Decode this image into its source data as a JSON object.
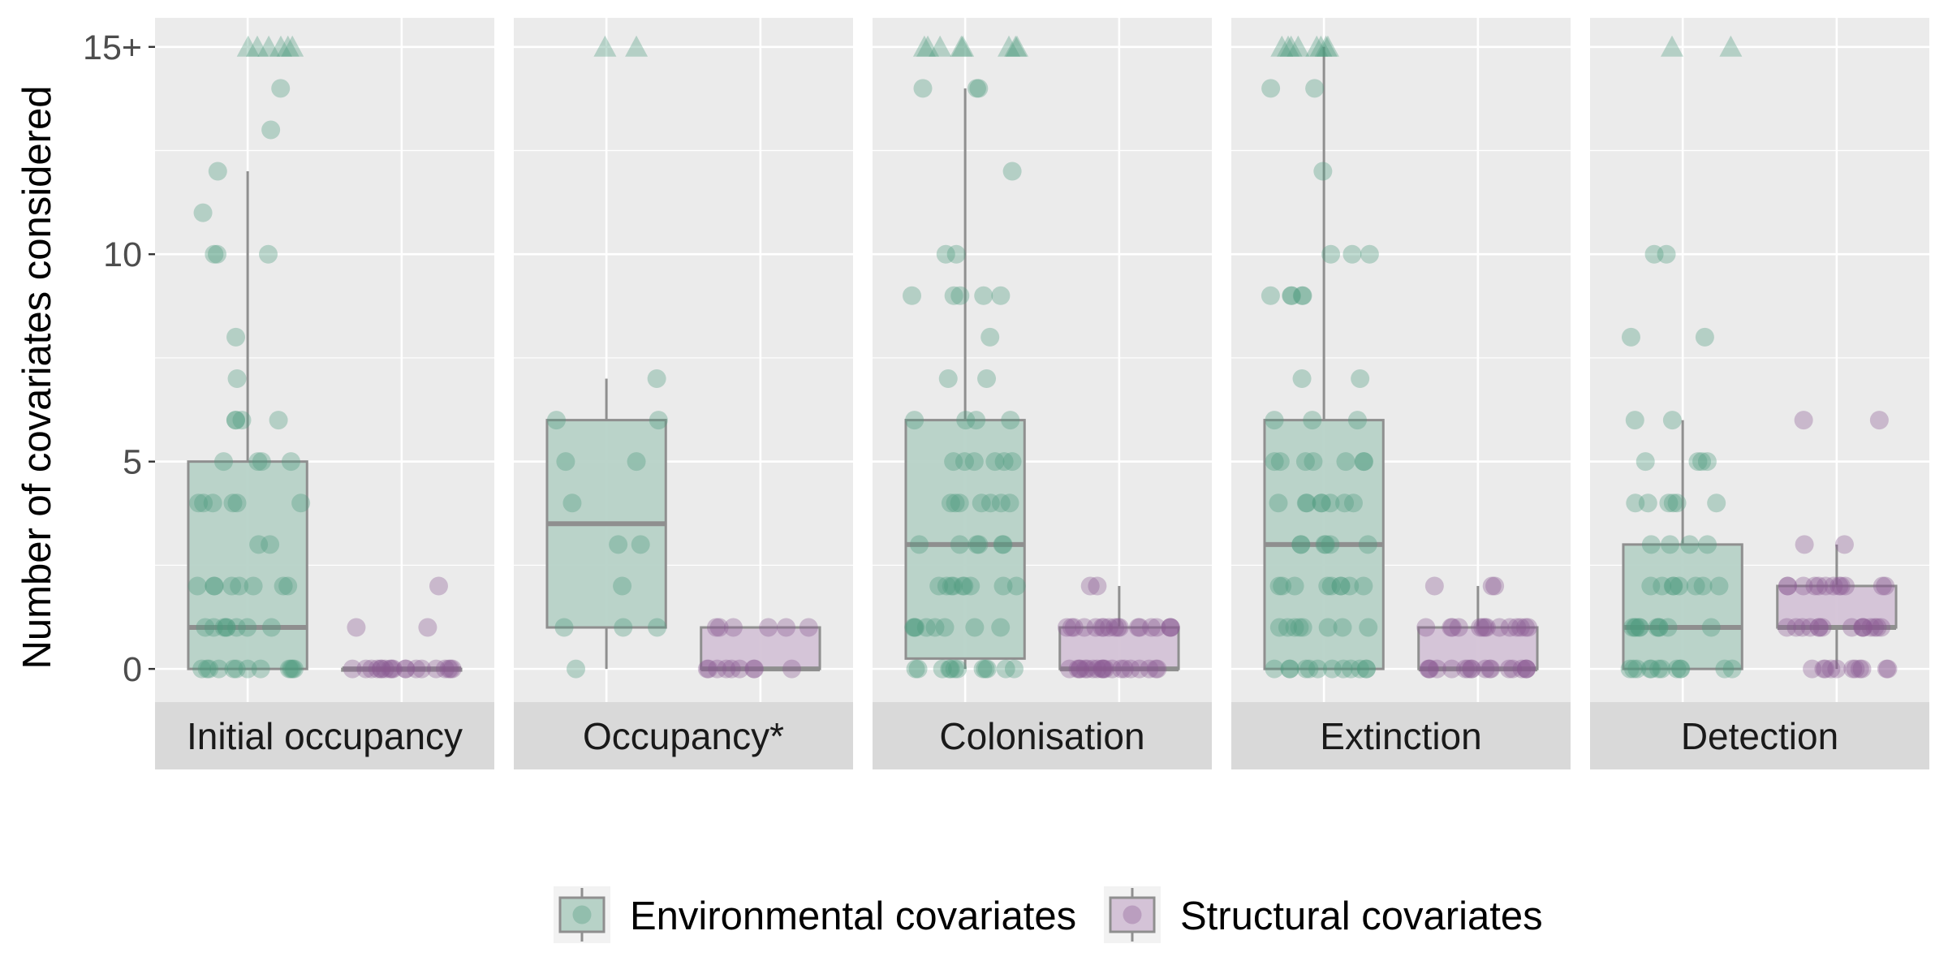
{
  "chart_data": {
    "type": "boxplot",
    "ylabel": "Number of covariates considered",
    "ylim": [
      -0.8,
      15.7
    ],
    "y_ticks": [
      {
        "value": 0,
        "label": "0"
      },
      {
        "value": 5,
        "label": "5"
      },
      {
        "value": 10,
        "label": "10"
      },
      {
        "value": 15,
        "label": "15+"
      }
    ],
    "capped_marker_note": "Triangles at 15+ mark studies with 15 or more covariates",
    "grid": true,
    "legend_position": "bottom",
    "series": [
      {
        "name": "Environmental covariates",
        "color": "#4e9a7f",
        "fill": "#b7d2c7"
      },
      {
        "name": "Structural covariates",
        "color": "#8a5a93",
        "fill": "#d4c3d7"
      }
    ],
    "panels": [
      {
        "label": "Initial occupancy",
        "environmental": {
          "box": {
            "q1": 0,
            "median": 1,
            "q3": 5,
            "whisker_low": 0,
            "whisker_high": 12
          },
          "points": [
            0,
            0,
            0,
            0,
            0,
            0,
            0,
            0,
            0,
            0,
            0,
            0,
            1,
            1,
            1,
            1,
            1,
            1,
            1,
            1,
            2,
            2,
            2,
            2,
            2,
            2,
            2,
            2,
            3,
            3,
            4,
            4,
            4,
            4,
            4,
            4,
            5,
            5,
            5,
            5,
            6,
            6,
            6,
            6,
            7,
            8,
            10,
            10,
            10,
            11,
            12,
            13,
            14
          ],
          "capped": [
            15,
            15,
            15,
            15,
            15,
            15
          ]
        },
        "structural": {
          "box": {
            "q1": 0,
            "median": 0,
            "q3": 0,
            "whisker_low": 0,
            "whisker_high": 0
          },
          "points": [
            0,
            0,
            0,
            0,
            0,
            0,
            0,
            0,
            0,
            0,
            0,
            0,
            0,
            0,
            0,
            0,
            0,
            0,
            0,
            1,
            1,
            2
          ],
          "capped": []
        }
      },
      {
        "label": "Occupancy*",
        "environmental": {
          "box": {
            "q1": 1,
            "median": 3.5,
            "q3": 6,
            "whisker_low": 0,
            "whisker_high": 7
          },
          "points": [
            0,
            1,
            1,
            1,
            2,
            3,
            3,
            4,
            5,
            5,
            6,
            6,
            7
          ],
          "capped": [
            15,
            15
          ]
        },
        "structural": {
          "box": {
            "q1": 0,
            "median": 0,
            "q3": 1,
            "whisker_low": 0,
            "whisker_high": 1
          },
          "points": [
            0,
            0,
            0,
            0,
            0,
            0,
            0,
            0,
            0,
            1,
            1,
            1,
            1,
            1,
            1
          ],
          "capped": []
        }
      },
      {
        "label": "Colonisation",
        "environmental": {
          "box": {
            "q1": 0.25,
            "median": 3,
            "q3": 6,
            "whisker_low": 0,
            "whisker_high": 14
          },
          "points": [
            0,
            0,
            0,
            0,
            0,
            0,
            0,
            0,
            0,
            0,
            0,
            0,
            1,
            1,
            1,
            1,
            1,
            1,
            1,
            1,
            2,
            2,
            2,
            2,
            2,
            2,
            2,
            2,
            2,
            3,
            3,
            3,
            3,
            3,
            3,
            4,
            4,
            4,
            4,
            4,
            4,
            4,
            5,
            5,
            5,
            5,
            5,
            5,
            6,
            6,
            6,
            6,
            7,
            7,
            8,
            9,
            9,
            9,
            9,
            9,
            10,
            10,
            12,
            14,
            14,
            14
          ],
          "capped": [
            15,
            15,
            15,
            15,
            15,
            15,
            15,
            15
          ]
        },
        "structural": {
          "box": {
            "q1": 0,
            "median": 0,
            "q3": 1,
            "whisker_low": 0,
            "whisker_high": 2
          },
          "points": [
            0,
            0,
            0,
            0,
            0,
            0,
            0,
            0,
            0,
            0,
            0,
            0,
            0,
            0,
            0,
            0,
            0,
            0,
            0,
            0,
            1,
            1,
            1,
            1,
            1,
            1,
            1,
            1,
            1,
            1,
            1,
            1,
            1,
            1,
            1,
            1,
            1,
            1,
            2,
            2
          ],
          "capped": []
        }
      },
      {
        "label": "Extinction",
        "environmental": {
          "box": {
            "q1": 0,
            "median": 3,
            "q3": 6,
            "whisker_low": 0,
            "whisker_high": 15
          },
          "points": [
            0,
            0,
            0,
            0,
            0,
            0,
            0,
            0,
            0,
            0,
            0,
            0,
            1,
            1,
            1,
            1,
            1,
            1,
            1,
            1,
            2,
            2,
            2,
            2,
            2,
            2,
            2,
            2,
            2,
            3,
            3,
            3,
            3,
            3,
            3,
            4,
            4,
            4,
            4,
            4,
            4,
            4,
            4,
            5,
            5,
            5,
            5,
            5,
            5,
            5,
            6,
            6,
            6,
            7,
            7,
            9,
            9,
            9,
            9,
            9,
            10,
            10,
            10,
            12,
            14,
            14
          ],
          "capped": [
            15,
            15,
            15,
            15,
            15,
            15,
            15,
            15
          ]
        },
        "structural": {
          "box": {
            "q1": 0,
            "median": 0,
            "q3": 1,
            "whisker_low": 0,
            "whisker_high": 2
          },
          "points": [
            0,
            0,
            0,
            0,
            0,
            0,
            0,
            0,
            0,
            0,
            0,
            0,
            0,
            0,
            0,
            0,
            0,
            0,
            1,
            1,
            1,
            1,
            1,
            1,
            1,
            1,
            1,
            1,
            1,
            1,
            1,
            1,
            2,
            2,
            2
          ],
          "capped": []
        }
      },
      {
        "label": "Detection",
        "environmental": {
          "box": {
            "q1": 0,
            "median": 1,
            "q3": 3,
            "whisker_low": 0,
            "whisker_high": 6
          },
          "points": [
            0,
            0,
            0,
            0,
            0,
            0,
            0,
            0,
            0,
            0,
            0,
            0,
            1,
            1,
            1,
            1,
            1,
            1,
            1,
            1,
            1,
            1,
            2,
            2,
            2,
            2,
            2,
            2,
            2,
            2,
            3,
            3,
            3,
            3,
            4,
            4,
            4,
            4,
            4,
            4,
            5,
            5,
            5,
            5,
            6,
            6,
            8,
            8,
            10,
            10
          ],
          "capped": [
            15,
            15
          ]
        },
        "structural": {
          "box": {
            "q1": 1,
            "median": 1,
            "q3": 2,
            "whisker_low": 0,
            "whisker_high": 3
          },
          "points": [
            0,
            0,
            0,
            0,
            0,
            0,
            0,
            0,
            0,
            0,
            0,
            1,
            1,
            1,
            1,
            1,
            1,
            1,
            1,
            1,
            1,
            1,
            1,
            1,
            1,
            1,
            2,
            2,
            2,
            2,
            2,
            2,
            2,
            2,
            2,
            2,
            2,
            2,
            3,
            3,
            6,
            6
          ],
          "capped": []
        }
      }
    ]
  }
}
